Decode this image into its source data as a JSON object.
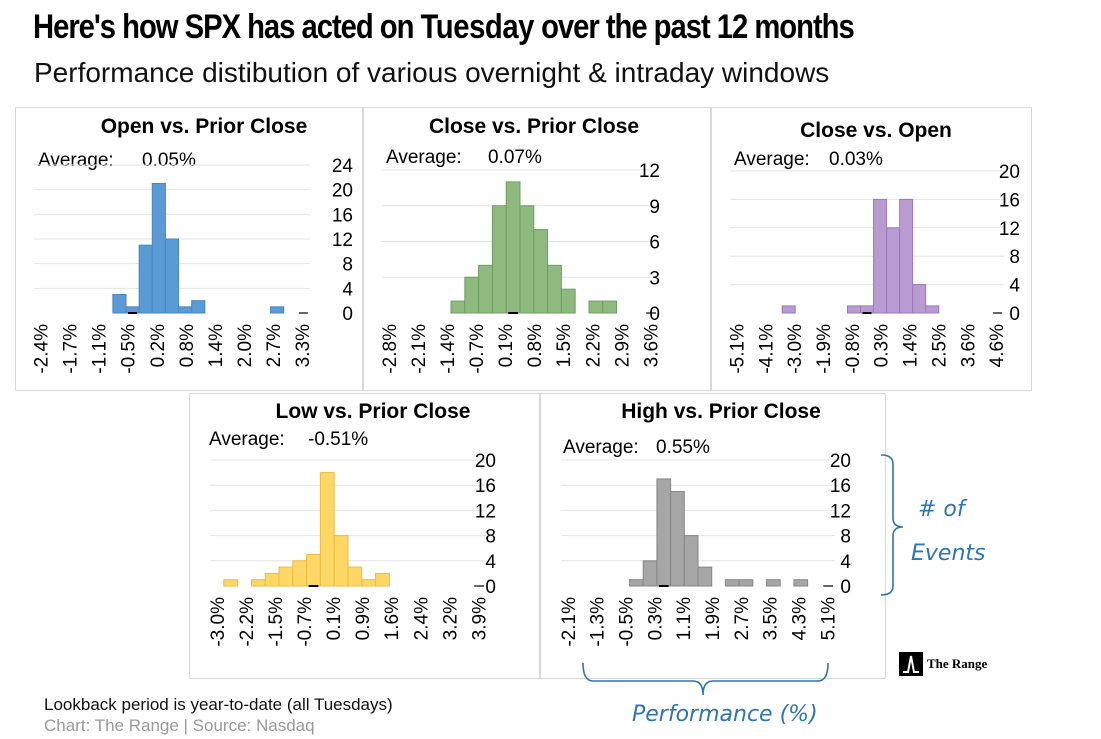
{
  "header": {
    "title_pre": "Here's how SPX has acted on ",
    "title_day": "Tuesday",
    "title_post": " over the past 12 months",
    "subtitle": "Performance distibution of various overnight & intraday windows"
  },
  "footer": {
    "note": "Lookback period is year-to-date (all Tuesdays)",
    "source": "Chart: The Range | Source: Nasdaq"
  },
  "annotations": {
    "events_line1": "# of",
    "events_line2": "Events",
    "performance": "Performance (%)",
    "accent_color": "#2e75b6"
  },
  "brand": {
    "name": "The Range",
    "icon": "range-logo-icon"
  },
  "chart_data": [
    {
      "type": "bar",
      "title": "Open vs. Prior Close",
      "average_label": "Average:",
      "average_value": "0.05%",
      "color": "#5b9bd5",
      "edge_color": "#4a86c0",
      "xlabel": "",
      "ylabel": "",
      "xticks": [
        "-2.4%",
        "-1.7%",
        "-1.1%",
        "-0.5%",
        "0.2%",
        "0.8%",
        "1.4%",
        "2.0%",
        "2.7%",
        "3.3%"
      ],
      "yticks": [
        0,
        4,
        8,
        12,
        16,
        20,
        24
      ],
      "ylim": [
        0,
        24
      ],
      "values": [
        0,
        0,
        0,
        0,
        0,
        0,
        3,
        1,
        11,
        21,
        12,
        1,
        2,
        0,
        0,
        0,
        0,
        0,
        1,
        0,
        0
      ],
      "mean_bin": 7,
      "grid": true
    },
    {
      "type": "bar",
      "title": "Close vs. Prior Close",
      "average_label": "Average:",
      "average_value": "0.07%",
      "color": "#8fba7f",
      "edge_color": "#6f9e61",
      "xlabel": "",
      "ylabel": "",
      "xticks": [
        "-2.8%",
        "-2.1%",
        "-1.4%",
        "-0.7%",
        "0.1%",
        "0.8%",
        "1.5%",
        "2.2%",
        "2.9%",
        "3.6%"
      ],
      "yticks": [
        0,
        3,
        6,
        9,
        12
      ],
      "ylim": [
        0,
        12
      ],
      "values": [
        0,
        0,
        0,
        0,
        0,
        1,
        3,
        4,
        9,
        11,
        9,
        7,
        4,
        2,
        0,
        1,
        1,
        0,
        0,
        0
      ],
      "mean_bin": 9,
      "grid": true
    },
    {
      "type": "bar",
      "title": "Close vs. Open",
      "average_label": "Average:",
      "average_value": "0.03%",
      "color": "#b99bd2",
      "edge_color": "#9a7bb8",
      "xlabel": "",
      "ylabel": "",
      "xticks": [
        "-5.1%",
        "-4.1%",
        "-3.0%",
        "-1.9%",
        "-0.8%",
        "0.3%",
        "1.4%",
        "2.5%",
        "3.6%",
        "4.6%"
      ],
      "yticks": [
        0,
        4,
        8,
        12,
        16,
        20
      ],
      "ylim": [
        0,
        20
      ],
      "values": [
        0,
        0,
        0,
        0,
        1,
        0,
        0,
        0,
        0,
        1,
        1,
        16,
        12,
        16,
        4,
        1,
        0,
        0,
        0,
        0,
        0
      ],
      "mean_bin": 10,
      "grid": true
    },
    {
      "type": "bar",
      "title": "Low vs. Prior Close",
      "average_label": "Average:",
      "average_value": "-0.51%",
      "color": "#ffd766",
      "edge_color": "#e8bd40",
      "xlabel": "",
      "ylabel": "",
      "xticks": [
        "-3.0%",
        "-2.2%",
        "-1.5%",
        "-0.7%",
        "0.1%",
        "0.9%",
        "1.6%",
        "2.4%",
        "3.2%",
        "3.9%"
      ],
      "yticks": [
        0,
        4,
        8,
        12,
        16,
        20
      ],
      "ylim": [
        0,
        20
      ],
      "values": [
        0,
        1,
        0,
        1,
        2,
        3,
        4,
        5,
        18,
        8,
        3,
        1,
        2,
        0,
        0,
        0,
        0,
        0,
        0,
        0
      ],
      "mean_bin": 7,
      "grid": true
    },
    {
      "type": "bar",
      "title": "High vs. Prior Close",
      "average_label": "Average:",
      "average_value": "0.55%",
      "color": "#a6a6a6",
      "edge_color": "#868686",
      "xlabel": "",
      "ylabel": "",
      "xticks": [
        "-2.1%",
        "-1.3%",
        "-0.5%",
        "0.3%",
        "1.1%",
        "1.9%",
        "2.7%",
        "3.5%",
        "4.3%",
        "5.1%"
      ],
      "yticks": [
        0,
        4,
        8,
        12,
        16,
        20
      ],
      "ylim": [
        0,
        20
      ],
      "values": [
        0,
        0,
        0,
        0,
        0,
        1,
        4,
        17,
        15,
        8,
        3,
        0,
        1,
        1,
        0,
        1,
        0,
        1,
        0,
        0
      ],
      "mean_bin": 7,
      "grid": true
    }
  ]
}
